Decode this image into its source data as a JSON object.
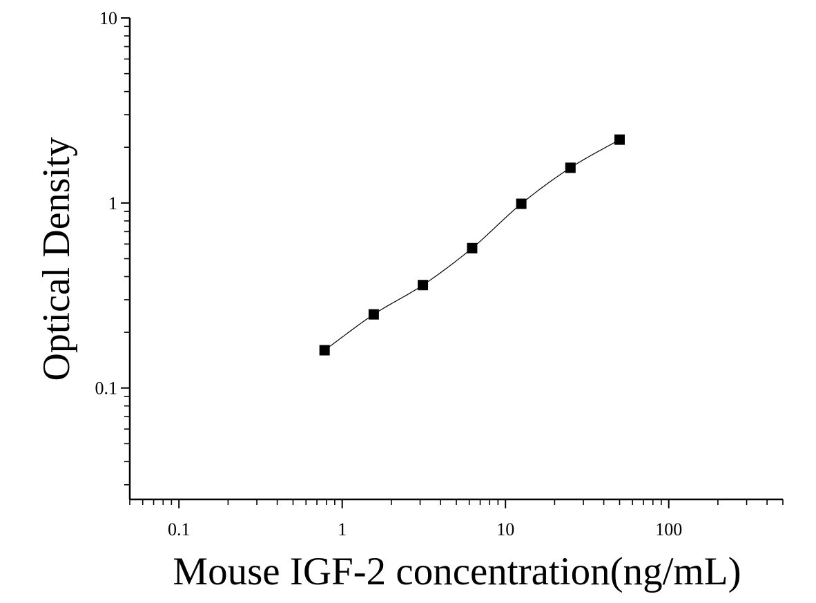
{
  "chart_data": {
    "type": "scatter",
    "xlabel": "Mouse IGF-2 concentration(ng/mL)",
    "ylabel": "Optical Density",
    "x_scale": "log",
    "y_scale": "log",
    "xlim": [
      0.05,
      500
    ],
    "ylim": [
      0.025,
      10
    ],
    "x_ticks": [
      {
        "value": 0.1,
        "label": "0.1"
      },
      {
        "value": 1,
        "label": "1"
      },
      {
        "value": 10,
        "label": "10"
      },
      {
        "value": 100,
        "label": "100"
      }
    ],
    "y_ticks": [
      {
        "value": 0.1,
        "label": "0.1"
      },
      {
        "value": 1,
        "label": "1"
      },
      {
        "value": 10,
        "label": "10"
      }
    ],
    "grid": false,
    "series": [
      {
        "marker": "square",
        "color": "#000000",
        "x": [
          0.78,
          1.56,
          3.12,
          6.25,
          12.5,
          25,
          50
        ],
        "y": [
          0.16,
          0.25,
          0.36,
          0.57,
          0.99,
          1.55,
          2.2
        ]
      }
    ],
    "fit_curve": {
      "type": "smooth",
      "color": "#000000"
    }
  }
}
